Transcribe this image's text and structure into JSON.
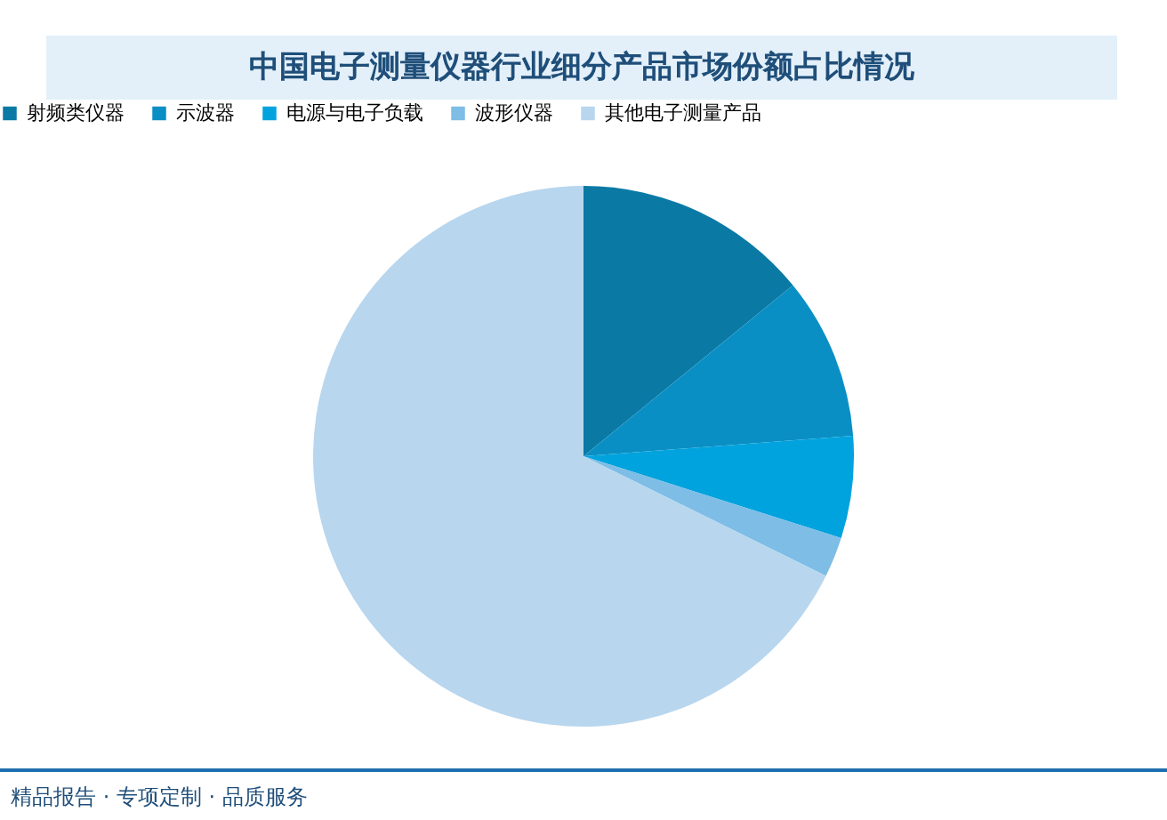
{
  "chart_data": {
    "type": "pie",
    "title": "中国电子测量仪器行业细分产品市场份额占比情况",
    "categories": [
      "射频类仪器",
      "示波器",
      "电源与电子负载",
      "波形仪器",
      "其他电子测量产品"
    ],
    "values": [
      14.1,
      9.7,
      6.1,
      2.4,
      67.7
    ],
    "colors": [
      "#0a7aa5",
      "#0a8fc4",
      "#00a3dd",
      "#7dbde6",
      "#b8d6ee"
    ],
    "legend": "top",
    "annotations": [
      "精品报告 · 专项定制 · 品质服务"
    ]
  }
}
